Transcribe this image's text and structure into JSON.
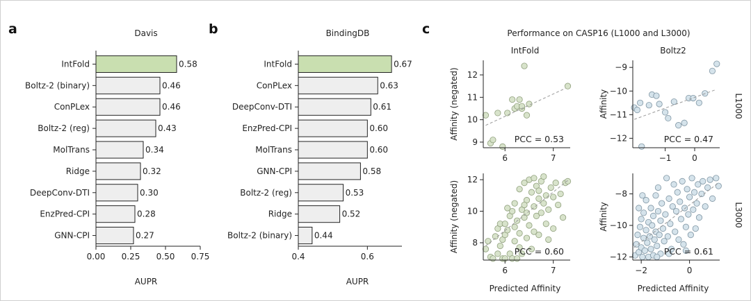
{
  "panels": {
    "a": "a",
    "b": "b",
    "c": "c"
  },
  "colors": {
    "highlight": "#c9dfb0",
    "bar": "#eeeeee",
    "edge": "#222222",
    "intfold_point": "#d6e2c8",
    "intfold_point_edge": "#8f9f7c",
    "boltz_point": "#d3e1ea",
    "boltz_point_edge": "#7f95a3",
    "fit_line": "#999999"
  },
  "chart_data": [
    {
      "id": "davis",
      "type": "bar",
      "orientation": "horizontal",
      "title": "Davis",
      "xlabel": "AUPR",
      "xlim": [
        0,
        0.75
      ],
      "xticks": [
        0.0,
        0.25,
        0.5,
        0.75
      ],
      "xtick_labels": [
        "0.00",
        "0.25",
        "0.50",
        "0.75"
      ],
      "categories": [
        "IntFold",
        "Boltz-2 (binary)",
        "ConPLex",
        "Boltz-2 (reg)",
        "MolTrans",
        "Ridge",
        "DeepConv-DTI",
        "EnzPred-CPI",
        "GNN-CPI"
      ],
      "values": [
        0.58,
        0.46,
        0.46,
        0.43,
        0.34,
        0.32,
        0.3,
        0.28,
        0.27
      ],
      "value_labels": [
        "0.58",
        "0.46",
        "0.46",
        "0.43",
        "0.34",
        "0.32",
        "0.30",
        "0.28",
        "0.27"
      ],
      "highlight": "IntFold"
    },
    {
      "id": "bindingdb",
      "type": "bar",
      "orientation": "horizontal",
      "title": "BindingDB",
      "xlabel": "AUPR",
      "xlim": [
        0.4,
        0.7
      ],
      "xticks": [
        0.4,
        0.6
      ],
      "xtick_labels": [
        "0.4",
        "0.6"
      ],
      "categories": [
        "IntFold",
        "ConPLex",
        "DeepConv-DTI",
        "EnzPred-CPI",
        "MolTrans",
        "GNN-CPI",
        "Boltz-2 (reg)",
        "Ridge",
        "Boltz-2 (binary)"
      ],
      "values": [
        0.67,
        0.63,
        0.61,
        0.6,
        0.6,
        0.58,
        0.53,
        0.52,
        0.44
      ],
      "value_labels": [
        "0.67",
        "0.63",
        "0.61",
        "0.60",
        "0.60",
        "0.58",
        "0.53",
        "0.52",
        "0.44"
      ],
      "highlight": "IntFold"
    },
    {
      "id": "casp16",
      "type": "scatter",
      "title": "Performance on CASP16 (L1000 and L3000)",
      "column_titles": [
        "IntFold",
        "Boltz2"
      ],
      "row_labels": [
        "L1000",
        "L3000"
      ],
      "xlabel": "Predicted Affinity",
      "subplots": [
        {
          "id": "intfold_l1000",
          "model": "IntFold",
          "set": "L1000",
          "ylabel": "Affinity (negated)",
          "xlim": [
            5.55,
            7.35
          ],
          "ylim": [
            8.75,
            12.65
          ],
          "xticks": [
            6,
            7
          ],
          "xtick_labels": [
            "6",
            "7"
          ],
          "yticks": [
            9,
            10,
            11,
            12
          ],
          "ytick_labels": [
            "9",
            "10",
            "11",
            "12"
          ],
          "pcc_label": "PCC = 0.53",
          "fit": [
            [
              5.6,
              9.75
            ],
            [
              7.25,
              11.4
            ]
          ],
          "points": [
            [
              5.6,
              10.2
            ],
            [
              5.7,
              8.95
            ],
            [
              5.75,
              9.1
            ],
            [
              5.85,
              10.3
            ],
            [
              5.95,
              8.8
            ],
            [
              6.05,
              10.3
            ],
            [
              6.15,
              10.9
            ],
            [
              6.2,
              10.5
            ],
            [
              6.25,
              10.6
            ],
            [
              6.3,
              10.9
            ],
            [
              6.35,
              10.5
            ],
            [
              6.35,
              10.6
            ],
            [
              6.4,
              12.4
            ],
            [
              6.45,
              10.2
            ],
            [
              6.5,
              10.7
            ],
            [
              7.3,
              11.5
            ]
          ]
        },
        {
          "id": "boltz2_l1000",
          "model": "Boltz2",
          "set": "L1000",
          "ylabel": "Affinity",
          "xlim": [
            -2.1,
            0.85
          ],
          "ylim": [
            -12.4,
            -8.7
          ],
          "xticks": [
            -1,
            0
          ],
          "xtick_labels": [
            "−1",
            "0"
          ],
          "yticks": [
            -12,
            -11,
            -10,
            -9
          ],
          "ytick_labels": [
            "−12",
            "−11",
            "−10",
            "−9"
          ],
          "pcc_label": "PCC = 0.47",
          "fit": [
            [
              -2.05,
              -11.2
            ],
            [
              0.7,
              -9.95
            ]
          ],
          "points": [
            [
              -2.05,
              -10.7
            ],
            [
              -1.95,
              -10.8
            ],
            [
              -1.85,
              -10.5
            ],
            [
              -1.8,
              -12.35
            ],
            [
              -1.55,
              -10.6
            ],
            [
              -1.45,
              -10.15
            ],
            [
              -1.3,
              -10.2
            ],
            [
              -1.2,
              -10.55
            ],
            [
              -1.0,
              -10.9
            ],
            [
              -0.9,
              -11.15
            ],
            [
              -0.7,
              -10.45
            ],
            [
              -0.55,
              -11.45
            ],
            [
              -0.35,
              -11.35
            ],
            [
              -0.2,
              -10.3
            ],
            [
              -0.05,
              -10.3
            ],
            [
              0.15,
              -10.5
            ],
            [
              0.35,
              -10.1
            ],
            [
              0.6,
              -9.15
            ],
            [
              0.75,
              -8.85
            ]
          ]
        },
        {
          "id": "intfold_l3000",
          "model": "IntFold",
          "set": "L3000",
          "ylabel": "Affinity (negated)",
          "xlim": [
            5.55,
            7.35
          ],
          "ylim": [
            6.9,
            12.4
          ],
          "xticks": [
            6,
            7
          ],
          "xtick_labels": [
            "6",
            "7"
          ],
          "yticks": [
            8,
            10,
            12
          ],
          "ytick_labels": [
            "8",
            "10",
            "12"
          ],
          "pcc_label": "PCC = 0.60",
          "fit": [
            [
              5.6,
              7.8
            ],
            [
              7.3,
              11.95
            ]
          ],
          "points": [
            [
              5.6,
              7.6
            ],
            [
              5.65,
              8.1
            ],
            [
              5.7,
              7.1
            ],
            [
              5.75,
              7.0
            ],
            [
              5.8,
              8.4
            ],
            [
              5.85,
              8.9
            ],
            [
              5.85,
              7.3
            ],
            [
              5.9,
              9.2
            ],
            [
              5.9,
              7.8
            ],
            [
              5.95,
              7.0
            ],
            [
              5.95,
              8.2
            ],
            [
              6.0,
              7.0
            ],
            [
              6.0,
              9.2
            ],
            [
              6.0,
              8.5
            ],
            [
              6.05,
              8.8
            ],
            [
              6.1,
              7.3
            ],
            [
              6.1,
              9.7
            ],
            [
              6.15,
              10.0
            ],
            [
              6.15,
              7.0
            ],
            [
              6.2,
              8.1
            ],
            [
              6.2,
              10.5
            ],
            [
              6.25,
              9.4
            ],
            [
              6.25,
              7.0
            ],
            [
              6.3,
              8.6
            ],
            [
              6.3,
              11.4
            ],
            [
              6.35,
              10.1
            ],
            [
              6.35,
              7.3
            ],
            [
              6.4,
              9.6
            ],
            [
              6.4,
              11.8
            ],
            [
              6.45,
              10.7
            ],
            [
              6.45,
              8.3
            ],
            [
              6.5,
              12.0
            ],
            [
              6.5,
              9.1
            ],
            [
              6.55,
              11.2
            ],
            [
              6.55,
              7.6
            ],
            [
              6.6,
              10.3
            ],
            [
              6.6,
              12.1
            ],
            [
              6.65,
              9.7
            ],
            [
              6.65,
              11.6
            ],
            [
              6.7,
              10.8
            ],
            [
              6.7,
              8.5
            ],
            [
              6.75,
              11.9
            ],
            [
              6.75,
              9.9
            ],
            [
              6.8,
              10.5
            ],
            [
              6.8,
              12.2
            ],
            [
              6.85,
              9.2
            ],
            [
              6.85,
              11.0
            ],
            [
              6.9,
              10.1
            ],
            [
              6.95,
              11.5
            ],
            [
              7.0,
              10.9
            ],
            [
              7.0,
              8.9
            ],
            [
              7.05,
              11.8
            ],
            [
              7.1,
              10.4
            ],
            [
              7.15,
              11.1
            ],
            [
              7.2,
              9.6
            ],
            [
              7.25,
              11.8
            ],
            [
              7.3,
              11.9
            ],
            [
              6.2,
              9.0
            ],
            [
              6.45,
              9.9
            ],
            [
              6.6,
              8.7
            ],
            [
              6.05,
              10.2
            ],
            [
              6.3,
              7.7
            ],
            [
              6.9,
              8.2
            ],
            [
              6.7,
              11.3
            ],
            [
              6.4,
              10.4
            ]
          ]
        },
        {
          "id": "boltz2_l3000",
          "model": "Boltz2",
          "set": "L3000",
          "ylabel": "Affinity",
          "xlim": [
            -2.35,
            1.25
          ],
          "ylim": [
            -12.2,
            -6.7
          ],
          "xticks": [
            -2,
            0
          ],
          "xtick_labels": [
            "−2",
            "0"
          ],
          "yticks": [
            -12,
            -10,
            -8
          ],
          "ytick_labels": [
            "−12",
            "−10",
            "−8"
          ],
          "pcc_label": "PCC = 0.61",
          "fit": [
            [
              -2.3,
              -11.4
            ],
            [
              1.2,
              -7.3
            ]
          ],
          "points": [
            [
              -2.25,
              -11.9
            ],
            [
              -2.2,
              -11.2
            ],
            [
              -2.15,
              -10.6
            ],
            [
              -2.1,
              -11.7
            ],
            [
              -2.05,
              -10.1
            ],
            [
              -2.0,
              -11.4
            ],
            [
              -2.0,
              -9.6
            ],
            [
              -1.95,
              -12.0
            ],
            [
              -1.9,
              -10.8
            ],
            [
              -1.9,
              -9.2
            ],
            [
              -1.85,
              -11.6
            ],
            [
              -1.8,
              -10.3
            ],
            [
              -1.8,
              -8.4
            ],
            [
              -1.75,
              -11.1
            ],
            [
              -1.7,
              -9.8
            ],
            [
              -1.7,
              -12.0
            ],
            [
              -1.65,
              -10.7
            ],
            [
              -1.6,
              -8.9
            ],
            [
              -1.6,
              -11.5
            ],
            [
              -1.55,
              -10.0
            ],
            [
              -1.5,
              -9.4
            ],
            [
              -1.5,
              -11.9
            ],
            [
              -1.45,
              -10.9
            ],
            [
              -1.4,
              -8.1
            ],
            [
              -1.4,
              -10.4
            ],
            [
              -1.35,
              -11.3
            ],
            [
              -1.3,
              -9.1
            ],
            [
              -1.3,
              -7.6
            ],
            [
              -1.25,
              -10.6
            ],
            [
              -1.2,
              -11.8
            ],
            [
              -1.2,
              -9.7
            ],
            [
              -1.15,
              -8.6
            ],
            [
              -1.1,
              -10.2
            ],
            [
              -1.05,
              -11.0
            ],
            [
              -1.0,
              -9.3
            ],
            [
              -0.95,
              -7.0
            ],
            [
              -0.9,
              -10.7
            ],
            [
              -0.85,
              -8.3
            ],
            [
              -0.8,
              -9.9
            ],
            [
              -0.75,
              -11.5
            ],
            [
              -0.7,
              -8.8
            ],
            [
              -0.65,
              -7.4
            ],
            [
              -0.6,
              -10.4
            ],
            [
              -0.55,
              -9.1
            ],
            [
              -0.5,
              -7.9
            ],
            [
              -0.45,
              -10.9
            ],
            [
              -0.4,
              -8.5
            ],
            [
              -0.35,
              -9.6
            ],
            [
              -0.3,
              -7.2
            ],
            [
              -0.25,
              -11.2
            ],
            [
              -0.2,
              -8.9
            ],
            [
              -0.15,
              -10.1
            ],
            [
              -0.1,
              -7.7
            ],
            [
              -0.05,
              -9.3
            ],
            [
              0.0,
              -8.2
            ],
            [
              0.05,
              -10.6
            ],
            [
              0.1,
              -7.0
            ],
            [
              0.15,
              -9.0
            ],
            [
              0.2,
              -7.9
            ],
            [
              0.3,
              -8.6
            ],
            [
              0.35,
              -7.4
            ],
            [
              0.4,
              -9.5
            ],
            [
              0.5,
              -8.0
            ],
            [
              0.55,
              -7.2
            ],
            [
              0.65,
              -8.8
            ],
            [
              0.75,
              -7.6
            ],
            [
              0.85,
              -7.1
            ],
            [
              0.95,
              -8.3
            ],
            [
              1.1,
              -7.0
            ],
            [
              1.2,
              -7.5
            ],
            [
              -2.1,
              -8.9
            ],
            [
              -1.95,
              -8.1
            ],
            [
              -1.35,
              -12.0
            ],
            [
              -0.85,
              -11.8
            ],
            [
              -0.15,
              -11.6
            ],
            [
              0.25,
              -10.2
            ]
          ]
        }
      ]
    }
  ]
}
